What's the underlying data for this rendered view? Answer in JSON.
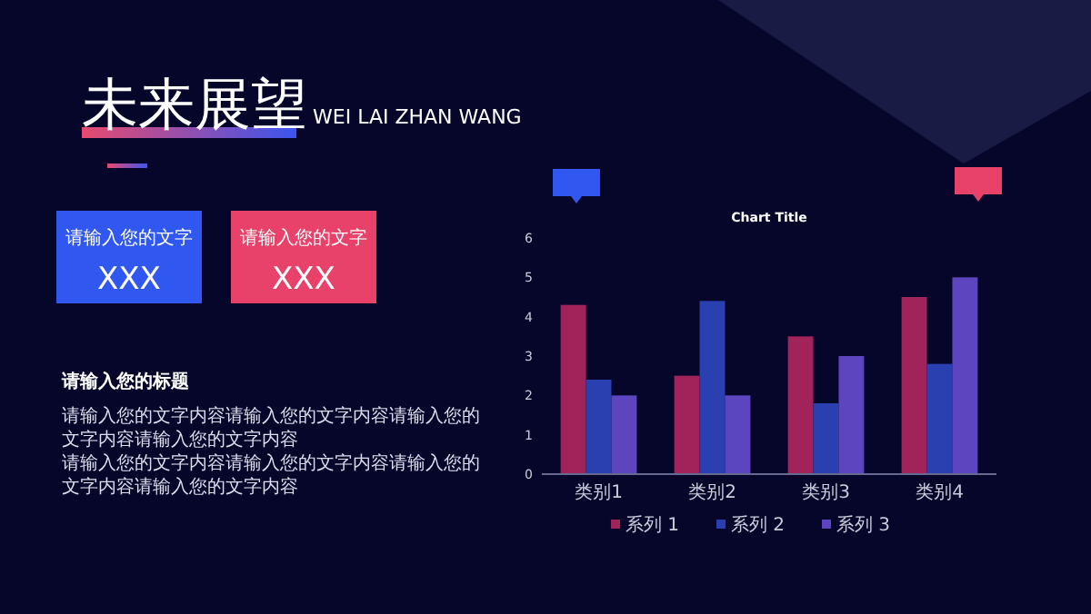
{
  "chart_data": {
    "type": "bar",
    "title": "Chart Title",
    "categories": [
      "类别1",
      "类别2",
      "类别3",
      "类别4"
    ],
    "series": [
      {
        "name": "系列 1",
        "color": "#a0245a",
        "values": [
          4.3,
          2.5,
          3.5,
          4.5
        ]
      },
      {
        "name": "系列 2",
        "color": "#2a3fb0",
        "values": [
          2.4,
          4.4,
          1.8,
          2.8
        ]
      },
      {
        "name": "系列 3",
        "color": "#5e45c0",
        "values": [
          2,
          2,
          3,
          5
        ]
      }
    ],
    "ylim": [
      0,
      6
    ],
    "yticks": [
      0,
      1,
      2,
      3,
      4,
      5,
      6
    ],
    "grid": false,
    "legend": "bottom",
    "annotations": [
      "未来展望",
      "WEI LAI ZHAN WANG",
      "请输入您的文字",
      "XXX",
      "请输入您的文字",
      "XXX",
      "请输入您的标题",
      "请输入您的文字内容请输入您的文字内容请输入您的文字内容请输入您的文字内容",
      "请输入您的文字内容请输入您的文字内容请输入您的文字内容请输入您的文字内容"
    ]
  }
}
